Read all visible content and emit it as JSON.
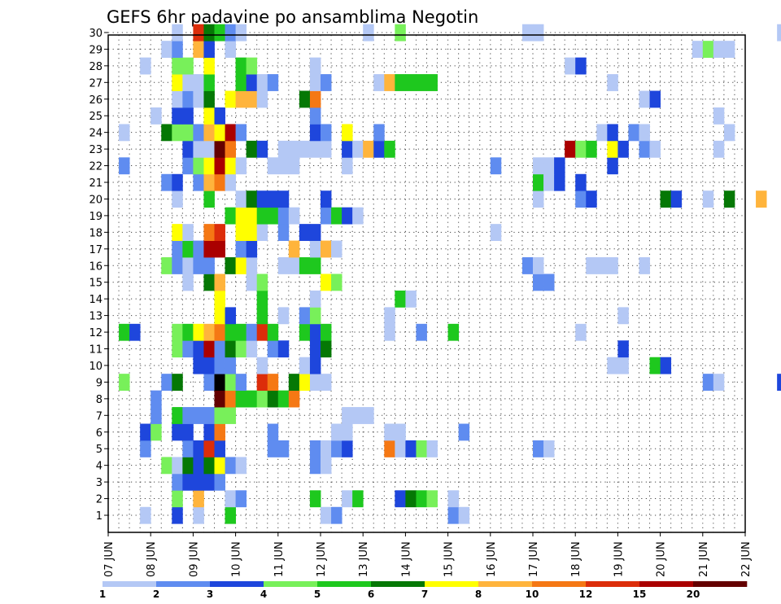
{
  "chart_data": {
    "type": "heatmap",
    "title": "GEFS 6hr padavine po ansamblima Negotin",
    "y_ticks": [
      "1",
      "2",
      "3",
      "4",
      "5",
      "6",
      "7",
      "8",
      "9",
      "10",
      "11",
      "12",
      "13",
      "14",
      "15",
      "16",
      "17",
      "18",
      "19",
      "20",
      "21",
      "22",
      "23",
      "24",
      "25",
      "26",
      "27",
      "28",
      "29",
      "30"
    ],
    "x_ticks": [
      "07 JUN",
      "08 JUN",
      "09 JUN",
      "10 JUN",
      "11 JUN",
      "12 JUN",
      "13 JUN",
      "14 JUN",
      "15 JUN",
      "16 JUN",
      "17 JUN",
      "18 JUN",
      "19 JUN",
      "20 JUN",
      "21 JUN",
      "22 JUN"
    ],
    "grid": true,
    "colorbar": {
      "labels": [
        "1",
        "2",
        "3",
        "4",
        "5",
        "6",
        "7",
        "8",
        "10",
        "12",
        "15",
        "20"
      ],
      "colors": [
        "#b4c8f5",
        "#5f8cf0",
        "#1e46dc",
        "#78f05a",
        "#1ec81e",
        "#057805",
        "#ffff00",
        "#ffb43c",
        "#f57814",
        "#dc2d0a",
        "#aa0000",
        "#640000"
      ]
    },
    "cells": [
      [
        1,
        3,
        0
      ],
      [
        1,
        6,
        2
      ],
      [
        1,
        8,
        0
      ],
      [
        1,
        11,
        4
      ],
      [
        1,
        20,
        0
      ],
      [
        1,
        21,
        1
      ],
      [
        1,
        32,
        1
      ],
      [
        1,
        33,
        0
      ],
      [
        2,
        6,
        3
      ],
      [
        2,
        8,
        7
      ],
      [
        2,
        11,
        0
      ],
      [
        2,
        12,
        1
      ],
      [
        2,
        19,
        4
      ],
      [
        2,
        22,
        0
      ],
      [
        2,
        23,
        4
      ],
      [
        2,
        27,
        2
      ],
      [
        2,
        28,
        5
      ],
      [
        2,
        29,
        4
      ],
      [
        2,
        30,
        3
      ],
      [
        2,
        32,
        0
      ],
      [
        3,
        6,
        1
      ],
      [
        3,
        7,
        2
      ],
      [
        3,
        8,
        2
      ],
      [
        3,
        9,
        2
      ],
      [
        3,
        10,
        1
      ],
      [
        4,
        5,
        3
      ],
      [
        4,
        6,
        0
      ],
      [
        4,
        7,
        5
      ],
      [
        4,
        8,
        2
      ],
      [
        4,
        9,
        5
      ],
      [
        4,
        10,
        6
      ],
      [
        4,
        11,
        1
      ],
      [
        4,
        12,
        0
      ],
      [
        4,
        19,
        1
      ],
      [
        4,
        20,
        0
      ],
      [
        5,
        3,
        1
      ],
      [
        5,
        7,
        1
      ],
      [
        5,
        8,
        2
      ],
      [
        5,
        9,
        9
      ],
      [
        5,
        10,
        2
      ],
      [
        5,
        15,
        1
      ],
      [
        5,
        16,
        1
      ],
      [
        5,
        19,
        1
      ],
      [
        5,
        20,
        0
      ],
      [
        5,
        21,
        1
      ],
      [
        5,
        22,
        2
      ],
      [
        5,
        26,
        8
      ],
      [
        5,
        27,
        0
      ],
      [
        5,
        28,
        2
      ],
      [
        5,
        29,
        3
      ],
      [
        5,
        30,
        0
      ],
      [
        5,
        40,
        1
      ],
      [
        5,
        41,
        0
      ],
      [
        6,
        3,
        2
      ],
      [
        6,
        4,
        3
      ],
      [
        6,
        6,
        2
      ],
      [
        6,
        7,
        2
      ],
      [
        6,
        9,
        2
      ],
      [
        6,
        10,
        8
      ],
      [
        6,
        15,
        1
      ],
      [
        6,
        21,
        0
      ],
      [
        6,
        22,
        0
      ],
      [
        6,
        26,
        0
      ],
      [
        6,
        27,
        0
      ],
      [
        6,
        33,
        1
      ],
      [
        7,
        4,
        1
      ],
      [
        7,
        6,
        4
      ],
      [
        7,
        7,
        1
      ],
      [
        7,
        8,
        1
      ],
      [
        7,
        9,
        1
      ],
      [
        7,
        10,
        3
      ],
      [
        7,
        11,
        3
      ],
      [
        7,
        22,
        0
      ],
      [
        7,
        23,
        0
      ],
      [
        7,
        24,
        0
      ],
      [
        8,
        4,
        1
      ],
      [
        8,
        10,
        11
      ],
      [
        8,
        11,
        8
      ],
      [
        8,
        12,
        4
      ],
      [
        8,
        13,
        4
      ],
      [
        8,
        14,
        3
      ],
      [
        8,
        15,
        5
      ],
      [
        8,
        16,
        4
      ],
      [
        8,
        17,
        8
      ],
      [
        9,
        1,
        3
      ],
      [
        9,
        5,
        1
      ],
      [
        9,
        6,
        5
      ],
      [
        9,
        9,
        1
      ],
      [
        9,
        10,
        12
      ],
      [
        9,
        11,
        3
      ],
      [
        9,
        12,
        1
      ],
      [
        9,
        14,
        9
      ],
      [
        9,
        15,
        8
      ],
      [
        9,
        17,
        5
      ],
      [
        9,
        18,
        6
      ],
      [
        9,
        19,
        0
      ],
      [
        9,
        20,
        0
      ],
      [
        9,
        56,
        1
      ],
      [
        9,
        57,
        0
      ],
      [
        9,
        63,
        2
      ],
      [
        10,
        8,
        2
      ],
      [
        10,
        9,
        2
      ],
      [
        10,
        10,
        1
      ],
      [
        10,
        11,
        1
      ],
      [
        10,
        14,
        0
      ],
      [
        10,
        18,
        0
      ],
      [
        10,
        19,
        2
      ],
      [
        10,
        47,
        0
      ],
      [
        10,
        48,
        0
      ],
      [
        10,
        51,
        4
      ],
      [
        10,
        52,
        2
      ],
      [
        11,
        6,
        3
      ],
      [
        11,
        7,
        1
      ],
      [
        11,
        8,
        2
      ],
      [
        11,
        9,
        10
      ],
      [
        11,
        10,
        1
      ],
      [
        11,
        11,
        5
      ],
      [
        11,
        12,
        3
      ],
      [
        11,
        13,
        0
      ],
      [
        11,
        15,
        1
      ],
      [
        11,
        16,
        2
      ],
      [
        11,
        19,
        2
      ],
      [
        11,
        20,
        5
      ],
      [
        11,
        48,
        2
      ],
      [
        12,
        1,
        4
      ],
      [
        12,
        2,
        2
      ],
      [
        12,
        6,
        3
      ],
      [
        12,
        7,
        4
      ],
      [
        12,
        8,
        6
      ],
      [
        12,
        9,
        7
      ],
      [
        12,
        10,
        8
      ],
      [
        12,
        11,
        4
      ],
      [
        12,
        12,
        4
      ],
      [
        12,
        13,
        1
      ],
      [
        12,
        14,
        9
      ],
      [
        12,
        15,
        4
      ],
      [
        12,
        18,
        4
      ],
      [
        12,
        19,
        2
      ],
      [
        12,
        20,
        4
      ],
      [
        12,
        26,
        0
      ],
      [
        12,
        29,
        1
      ],
      [
        12,
        32,
        4
      ],
      [
        12,
        44,
        0
      ],
      [
        13,
        10,
        6
      ],
      [
        13,
        11,
        2
      ],
      [
        13,
        14,
        4
      ],
      [
        13,
        16,
        0
      ],
      [
        13,
        18,
        1
      ],
      [
        13,
        19,
        3
      ],
      [
        13,
        26,
        0
      ],
      [
        13,
        48,
        0
      ],
      [
        14,
        10,
        6
      ],
      [
        14,
        14,
        4
      ],
      [
        14,
        19,
        0
      ],
      [
        14,
        27,
        4
      ],
      [
        14,
        28,
        0
      ],
      [
        15,
        7,
        0
      ],
      [
        15,
        9,
        5
      ],
      [
        15,
        10,
        7
      ],
      [
        15,
        13,
        0
      ],
      [
        15,
        14,
        3
      ],
      [
        15,
        20,
        6
      ],
      [
        15,
        21,
        3
      ],
      [
        15,
        40,
        1
      ],
      [
        15,
        41,
        1
      ],
      [
        16,
        5,
        3
      ],
      [
        16,
        6,
        1
      ],
      [
        16,
        7,
        0
      ],
      [
        16,
        8,
        1
      ],
      [
        16,
        9,
        1
      ],
      [
        16,
        11,
        5
      ],
      [
        16,
        12,
        6
      ],
      [
        16,
        13,
        0
      ],
      [
        16,
        16,
        0
      ],
      [
        16,
        17,
        0
      ],
      [
        16,
        18,
        4
      ],
      [
        16,
        19,
        4
      ],
      [
        16,
        39,
        1
      ],
      [
        16,
        40,
        0
      ],
      [
        16,
        45,
        0
      ],
      [
        16,
        46,
        0
      ],
      [
        16,
        47,
        0
      ],
      [
        16,
        50,
        0
      ],
      [
        17,
        6,
        1
      ],
      [
        17,
        7,
        4
      ],
      [
        17,
        8,
        1
      ],
      [
        17,
        9,
        10
      ],
      [
        17,
        10,
        10
      ],
      [
        17,
        12,
        1
      ],
      [
        17,
        13,
        2
      ],
      [
        17,
        17,
        7
      ],
      [
        17,
        19,
        0
      ],
      [
        17,
        20,
        7
      ],
      [
        17,
        21,
        0
      ],
      [
        18,
        6,
        6
      ],
      [
        18,
        7,
        0
      ],
      [
        18,
        9,
        8
      ],
      [
        18,
        10,
        9
      ],
      [
        18,
        12,
        6
      ],
      [
        18,
        13,
        6
      ],
      [
        18,
        14,
        0
      ],
      [
        18,
        16,
        1
      ],
      [
        18,
        18,
        2
      ],
      [
        18,
        19,
        2
      ],
      [
        18,
        36,
        0
      ],
      [
        19,
        11,
        4
      ],
      [
        19,
        12,
        6
      ],
      [
        19,
        13,
        6
      ],
      [
        19,
        14,
        4
      ],
      [
        19,
        15,
        4
      ],
      [
        19,
        16,
        1
      ],
      [
        19,
        17,
        0
      ],
      [
        19,
        20,
        1
      ],
      [
        19,
        21,
        4
      ],
      [
        19,
        22,
        2
      ],
      [
        19,
        23,
        0
      ],
      [
        20,
        6,
        0
      ],
      [
        20,
        9,
        4
      ],
      [
        20,
        12,
        0
      ],
      [
        20,
        13,
        5
      ],
      [
        20,
        14,
        2
      ],
      [
        20,
        15,
        2
      ],
      [
        20,
        16,
        2
      ],
      [
        20,
        20,
        2
      ],
      [
        20,
        40,
        0
      ],
      [
        20,
        44,
        1
      ],
      [
        20,
        45,
        2
      ],
      [
        20,
        52,
        5
      ],
      [
        20,
        53,
        2
      ],
      [
        20,
        56,
        0
      ],
      [
        20,
        58,
        5
      ],
      [
        20,
        61,
        7
      ],
      [
        21,
        5,
        1
      ],
      [
        21,
        6,
        2
      ],
      [
        21,
        8,
        1
      ],
      [
        21,
        9,
        7
      ],
      [
        21,
        10,
        8
      ],
      [
        21,
        11,
        0
      ],
      [
        21,
        40,
        4
      ],
      [
        21,
        41,
        0
      ],
      [
        21,
        42,
        2
      ],
      [
        21,
        44,
        2
      ],
      [
        22,
        1,
        1
      ],
      [
        22,
        7,
        1
      ],
      [
        22,
        8,
        3
      ],
      [
        22,
        9,
        6
      ],
      [
        22,
        10,
        10
      ],
      [
        22,
        11,
        6
      ],
      [
        22,
        12,
        0
      ],
      [
        22,
        15,
        0
      ],
      [
        22,
        16,
        0
      ],
      [
        22,
        17,
        0
      ],
      [
        22,
        22,
        0
      ],
      [
        22,
        36,
        1
      ],
      [
        22,
        40,
        0
      ],
      [
        22,
        41,
        0
      ],
      [
        22,
        42,
        2
      ],
      [
        22,
        47,
        2
      ],
      [
        23,
        7,
        2
      ],
      [
        23,
        8,
        0
      ],
      [
        23,
        9,
        0
      ],
      [
        23,
        10,
        11
      ],
      [
        23,
        11,
        8
      ],
      [
        23,
        13,
        5
      ],
      [
        23,
        14,
        2
      ],
      [
        23,
        16,
        0
      ],
      [
        23,
        17,
        0
      ],
      [
        23,
        18,
        0
      ],
      [
        23,
        19,
        0
      ],
      [
        23,
        20,
        0
      ],
      [
        23,
        22,
        2
      ],
      [
        23,
        23,
        0
      ],
      [
        23,
        24,
        7
      ],
      [
        23,
        25,
        2
      ],
      [
        23,
        26,
        4
      ],
      [
        23,
        43,
        10
      ],
      [
        23,
        44,
        3
      ],
      [
        23,
        45,
        4
      ],
      [
        23,
        47,
        6
      ],
      [
        23,
        48,
        2
      ],
      [
        23,
        50,
        1
      ],
      [
        23,
        51,
        0
      ],
      [
        23,
        57,
        0
      ],
      [
        24,
        1,
        0
      ],
      [
        24,
        5,
        5
      ],
      [
        24,
        6,
        3
      ],
      [
        24,
        7,
        3
      ],
      [
        24,
        8,
        1
      ],
      [
        24,
        9,
        7
      ],
      [
        24,
        10,
        6
      ],
      [
        24,
        11,
        10
      ],
      [
        24,
        12,
        1
      ],
      [
        24,
        19,
        2
      ],
      [
        24,
        20,
        1
      ],
      [
        24,
        22,
        6
      ],
      [
        24,
        25,
        1
      ],
      [
        24,
        46,
        0
      ],
      [
        24,
        47,
        2
      ],
      [
        24,
        49,
        1
      ],
      [
        24,
        50,
        0
      ],
      [
        24,
        58,
        0
      ],
      [
        25,
        4,
        0
      ],
      [
        25,
        6,
        2
      ],
      [
        25,
        7,
        2
      ],
      [
        25,
        9,
        6
      ],
      [
        25,
        10,
        2
      ],
      [
        25,
        19,
        1
      ],
      [
        25,
        57,
        0
      ],
      [
        26,
        6,
        0
      ],
      [
        26,
        7,
        1
      ],
      [
        26,
        8,
        0
      ],
      [
        26,
        9,
        5
      ],
      [
        26,
        11,
        6
      ],
      [
        26,
        12,
        7
      ],
      [
        26,
        13,
        7
      ],
      [
        26,
        14,
        0
      ],
      [
        26,
        18,
        5
      ],
      [
        26,
        19,
        8
      ],
      [
        26,
        50,
        0
      ],
      [
        26,
        51,
        2
      ],
      [
        27,
        6,
        6
      ],
      [
        27,
        7,
        0
      ],
      [
        27,
        8,
        0
      ],
      [
        27,
        9,
        4
      ],
      [
        27,
        12,
        4
      ],
      [
        27,
        13,
        2
      ],
      [
        27,
        14,
        0
      ],
      [
        27,
        15,
        1
      ],
      [
        27,
        19,
        0
      ],
      [
        27,
        20,
        1
      ],
      [
        27,
        25,
        0
      ],
      [
        27,
        26,
        7
      ],
      [
        27,
        27,
        4
      ],
      [
        27,
        28,
        4
      ],
      [
        27,
        29,
        4
      ],
      [
        27,
        30,
        4
      ],
      [
        27,
        47,
        0
      ],
      [
        28,
        3,
        0
      ],
      [
        28,
        6,
        3
      ],
      [
        28,
        7,
        3
      ],
      [
        28,
        9,
        6
      ],
      [
        28,
        12,
        4
      ],
      [
        28,
        13,
        3
      ],
      [
        28,
        19,
        0
      ],
      [
        28,
        43,
        0
      ],
      [
        28,
        44,
        2
      ],
      [
        29,
        5,
        0
      ],
      [
        29,
        6,
        1
      ],
      [
        29,
        8,
        7
      ],
      [
        29,
        9,
        2
      ],
      [
        29,
        11,
        0
      ],
      [
        29,
        55,
        0
      ],
      [
        29,
        56,
        3
      ],
      [
        29,
        57,
        0
      ],
      [
        29,
        58,
        0
      ],
      [
        30,
        6,
        0
      ],
      [
        30,
        8,
        9
      ],
      [
        30,
        9,
        5
      ],
      [
        30,
        10,
        4
      ],
      [
        30,
        11,
        1
      ],
      [
        30,
        12,
        0
      ],
      [
        30,
        24,
        0
      ],
      [
        30,
        27,
        3
      ],
      [
        30,
        39,
        0
      ],
      [
        30,
        40,
        0
      ],
      [
        30,
        63,
        0
      ]
    ]
  }
}
